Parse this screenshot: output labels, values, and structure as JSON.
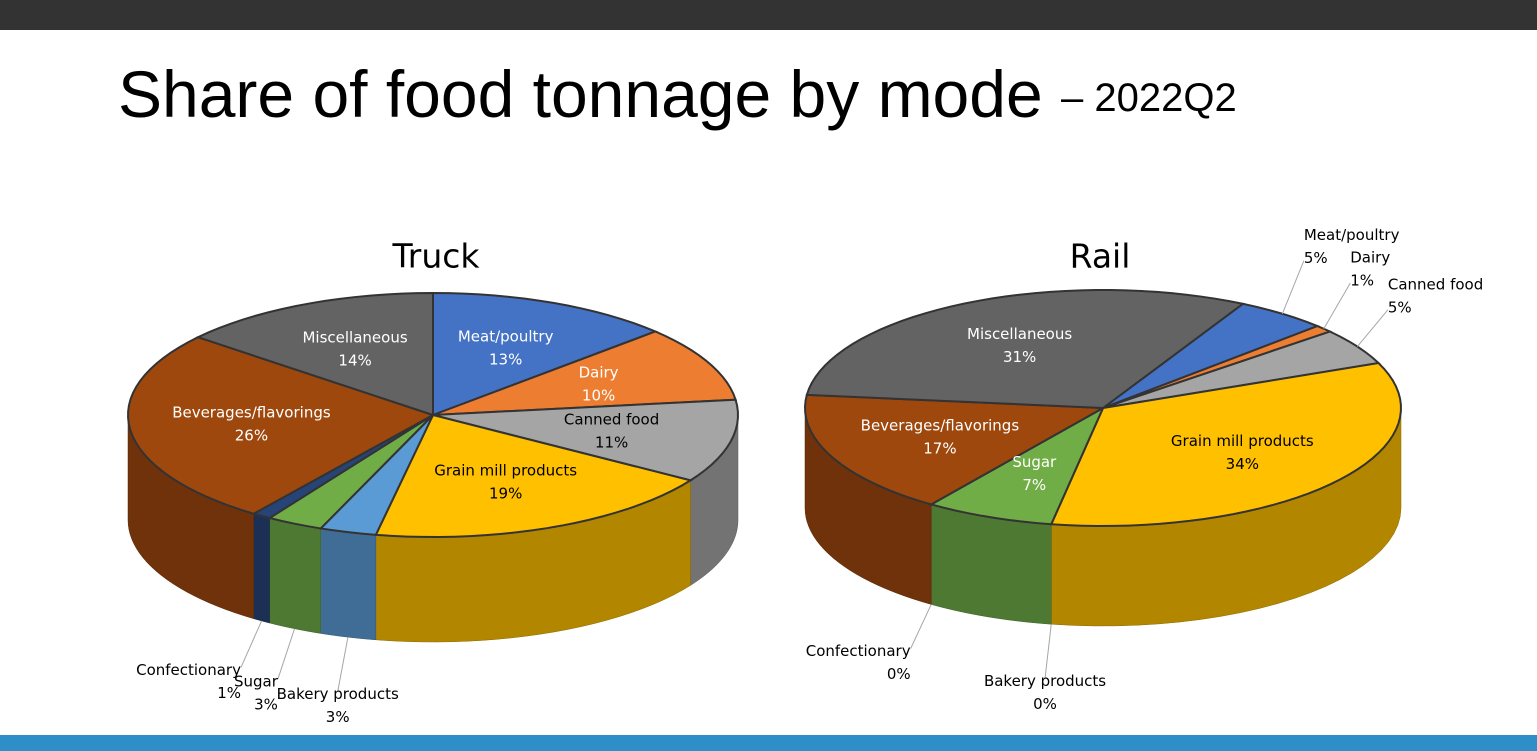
{
  "title": "Share of food tonnage by mode",
  "subtitle": "– 2022Q2",
  "chart_data": [
    {
      "type": "pie",
      "title": "Truck",
      "categories": [
        "Meat/poultry",
        "Dairy",
        "Canned food",
        "Grain mill products",
        "Bakery products",
        "Sugar",
        "Confectionary",
        "Beverages/flavorings",
        "Miscellaneous"
      ],
      "values": [
        13,
        10,
        11,
        19,
        3,
        3,
        1,
        26,
        14
      ],
      "value_labels": [
        "13%",
        "10%",
        "11%",
        "19%",
        "3%",
        "3%",
        "1%",
        "26%",
        "14%"
      ],
      "colors": [
        "#4472c4",
        "#ed7d31",
        "#a5a5a5",
        "#ffc000",
        "#5b9bd5",
        "#70ad47",
        "#264478",
        "#9e480e",
        "#636363"
      ]
    },
    {
      "type": "pie",
      "title": "Rail",
      "categories": [
        "Meat/poultry",
        "Dairy",
        "Canned food",
        "Grain mill products",
        "Bakery products",
        "Sugar",
        "Confectionary",
        "Beverages/flavorings",
        "Miscellaneous"
      ],
      "values": [
        5,
        1,
        5,
        34,
        0,
        7,
        0,
        17,
        31
      ],
      "value_labels": [
        "5%",
        "1%",
        "5%",
        "34%",
        "0%",
        "7%",
        "0%",
        "17%",
        "31%"
      ],
      "colors": [
        "#4472c4",
        "#ed7d31",
        "#a5a5a5",
        "#ffc000",
        "#5b9bd5",
        "#70ad47",
        "#264478",
        "#9e480e",
        "#636363"
      ]
    }
  ]
}
